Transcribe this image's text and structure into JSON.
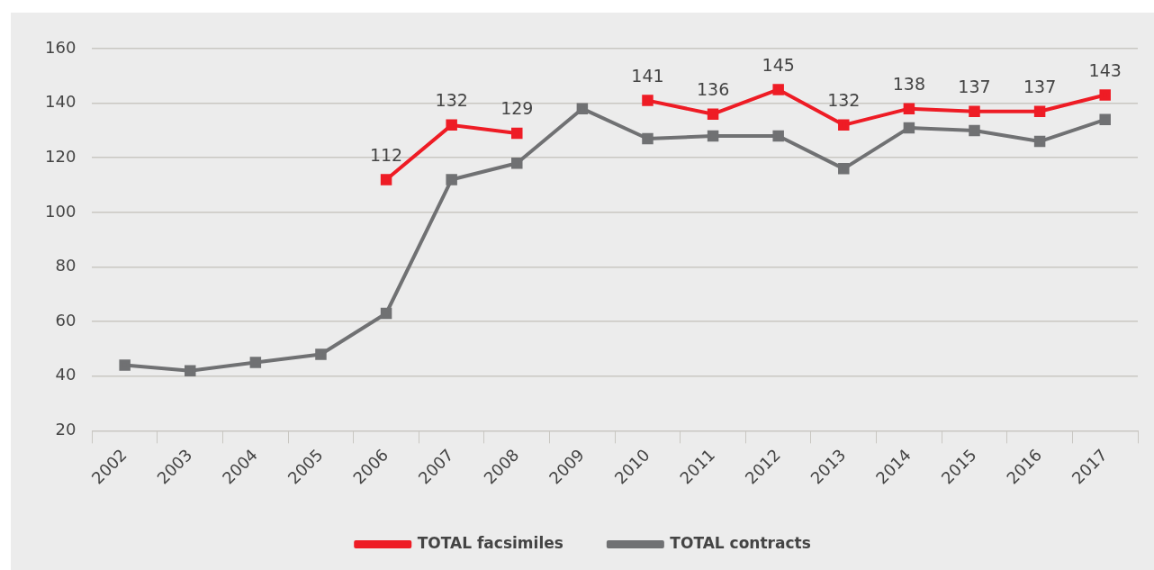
{
  "chart_data": {
    "type": "line",
    "categories": [
      "2002",
      "2003",
      "2004",
      "2005",
      "2006",
      "2007",
      "2008",
      "2009",
      "2010",
      "2011",
      "2012",
      "2013",
      "2014",
      "2015",
      "2016",
      "2017"
    ],
    "series": [
      {
        "name": "TOTAL facsimiles",
        "color": "#ee1c25",
        "values": [
          null,
          null,
          null,
          null,
          112,
          132,
          129,
          null,
          141,
          136,
          145,
          132,
          138,
          137,
          137,
          143
        ],
        "value_labels": [
          null,
          null,
          null,
          null,
          "112",
          "132",
          "129",
          null,
          "141",
          "136",
          "145",
          "132",
          "138",
          "137",
          "137",
          "143"
        ]
      },
      {
        "name": "TOTAL contracts",
        "color": "#707173",
        "values": [
          44,
          42,
          45,
          48,
          63,
          112,
          118,
          138,
          127,
          128,
          128,
          116,
          131,
          130,
          126,
          134
        ]
      }
    ],
    "ylim": [
      20,
      160
    ],
    "yticks": [
      20,
      40,
      60,
      80,
      100,
      120,
      140,
      160
    ],
    "grid": "y",
    "legend": "bottom",
    "marker": "square",
    "line_style": "solid"
  }
}
